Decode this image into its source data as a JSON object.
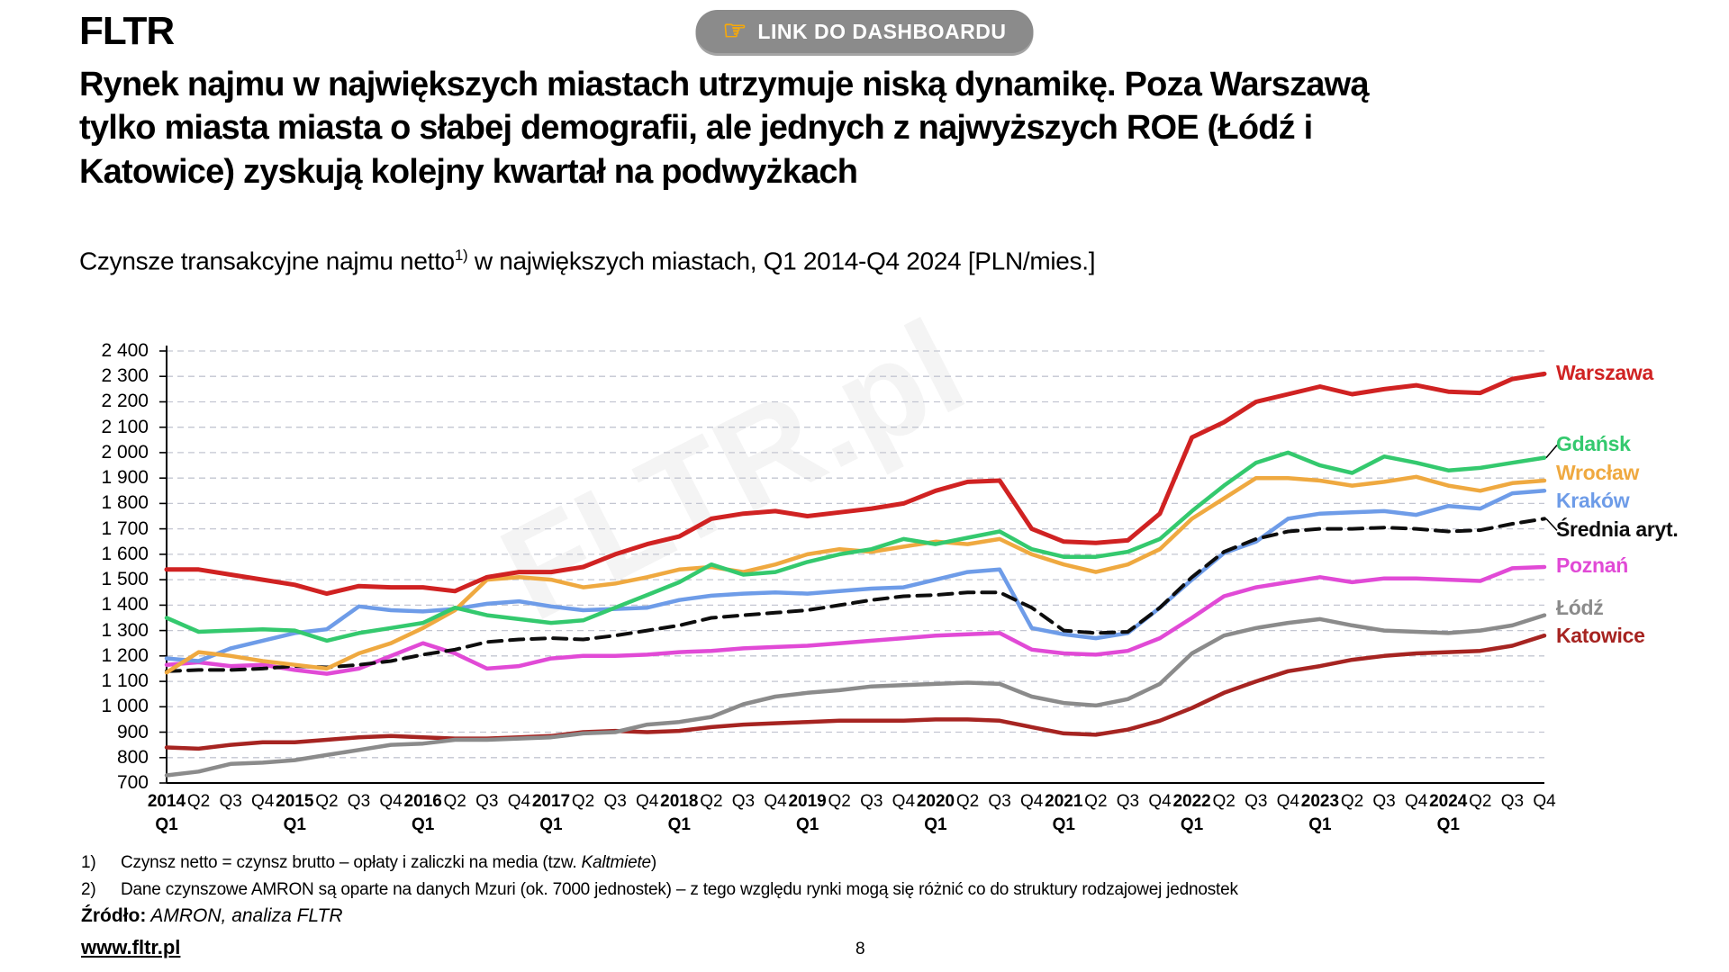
{
  "header": {
    "logo": "FLTR",
    "button_icon": "☞",
    "button_label": "LINK DO DASHBOARDU"
  },
  "title": "Rynek najmu w największych miastach utrzymuje niską dynamikę. Poza Warszawą tylko miasta miasta o słabej demografii, ale jednych z najwyższych ROE (Łódź i Katowice) zyskują kolejny kwartał na podwyżkach",
  "subtitle": {
    "prefix": "Czynsze transakcyjne najmu netto",
    "sup": "1)",
    "suffix": " w największych miastach, Q1 2014-Q4 2024 [PLN/mies.]"
  },
  "watermark": "FLTR.pl",
  "chart_data": {
    "type": "line",
    "title": "Czynsze transakcyjne najmu netto w największych miastach, Q1 2014-Q4 2024 [PLN/mies.]",
    "xlabel": "",
    "ylabel": "PLN/mies.",
    "ylim": [
      700,
      2400
    ],
    "ytick_step": 100,
    "grid": true,
    "legend_position": "right",
    "x_labels": [
      "2014 Q1",
      "Q2",
      "Q3",
      "Q4",
      "2015 Q1",
      "Q2",
      "Q3",
      "Q4",
      "2016 Q1",
      "Q2",
      "Q3",
      "Q4",
      "2017 Q1",
      "Q2",
      "Q3",
      "Q4",
      "2018 Q1",
      "Q2",
      "Q3",
      "Q4",
      "2019 Q1",
      "Q2",
      "Q3",
      "Q4",
      "2020 Q1",
      "Q2",
      "Q3",
      "Q4",
      "2021 Q1",
      "Q2",
      "Q3",
      "Q4",
      "2022 Q1",
      "Q2",
      "Q3",
      "Q4",
      "2023 Q1",
      "Q2",
      "Q3",
      "Q4",
      "2024 Q1",
      "Q2",
      "Q3",
      "Q4"
    ],
    "series": [
      {
        "name": "Warszawa",
        "color": "#d02222",
        "dash": false,
        "width": 5,
        "values": [
          1540,
          1540,
          1520,
          1500,
          1480,
          1445,
          1475,
          1470,
          1470,
          1455,
          1510,
          1530,
          1530,
          1550,
          1600,
          1640,
          1670,
          1740,
          1760,
          1770,
          1750,
          1765,
          1780,
          1800,
          1850,
          1885,
          1890,
          1700,
          1650,
          1645,
          1655,
          1760,
          2060,
          2120,
          2200,
          2230,
          2260,
          2230,
          2250,
          2265,
          2240,
          2235,
          2290,
          2310
        ]
      },
      {
        "name": "Gdańsk",
        "color": "#34c96e",
        "dash": false,
        "width": 4.5,
        "values": [
          1350,
          1295,
          1300,
          1305,
          1300,
          1260,
          1290,
          1310,
          1330,
          1390,
          1360,
          1345,
          1330,
          1340,
          1390,
          1440,
          1490,
          1560,
          1520,
          1530,
          1570,
          1600,
          1620,
          1660,
          1640,
          1665,
          1690,
          1620,
          1590,
          1590,
          1610,
          1660,
          1770,
          1870,
          1960,
          2000,
          1950,
          1920,
          1985,
          1960,
          1930,
          1940,
          1960,
          1980
        ]
      },
      {
        "name": "Wrocław",
        "color": "#efa940",
        "dash": false,
        "width": 4.5,
        "values": [
          1135,
          1215,
          1200,
          1180,
          1165,
          1150,
          1210,
          1250,
          1310,
          1380,
          1500,
          1510,
          1500,
          1470,
          1485,
          1510,
          1540,
          1550,
          1530,
          1560,
          1600,
          1620,
          1610,
          1630,
          1650,
          1640,
          1660,
          1600,
          1560,
          1530,
          1560,
          1620,
          1740,
          1820,
          1900,
          1900,
          1890,
          1870,
          1885,
          1905,
          1870,
          1850,
          1880,
          1890
        ]
      },
      {
        "name": "Kraków",
        "color": "#6e9ce8",
        "dash": false,
        "width": 4.5,
        "values": [
          1190,
          1180,
          1230,
          1260,
          1290,
          1305,
          1395,
          1380,
          1375,
          1385,
          1405,
          1415,
          1395,
          1380,
          1385,
          1390,
          1420,
          1437,
          1445,
          1450,
          1445,
          1455,
          1465,
          1470,
          1500,
          1530,
          1540,
          1310,
          1285,
          1270,
          1290,
          1390,
          1500,
          1605,
          1650,
          1740,
          1760,
          1765,
          1770,
          1755,
          1790,
          1780,
          1840,
          1850
        ]
      },
      {
        "name": "Średnia aryt.",
        "color": "#0d0d0d",
        "dash": true,
        "width": 4,
        "values": [
          1140,
          1145,
          1145,
          1150,
          1160,
          1155,
          1165,
          1180,
          1205,
          1225,
          1255,
          1265,
          1270,
          1265,
          1280,
          1300,
          1320,
          1350,
          1360,
          1370,
          1380,
          1400,
          1420,
          1435,
          1440,
          1450,
          1450,
          1390,
          1300,
          1290,
          1295,
          1390,
          1510,
          1610,
          1660,
          1690,
          1700,
          1700,
          1705,
          1700,
          1690,
          1695,
          1720,
          1740
        ]
      },
      {
        "name": "Poznań",
        "color": "#e14ad6",
        "dash": false,
        "width": 4.5,
        "values": [
          1165,
          1175,
          1160,
          1165,
          1145,
          1130,
          1150,
          1200,
          1250,
          1210,
          1150,
          1160,
          1190,
          1200,
          1200,
          1205,
          1215,
          1220,
          1230,
          1235,
          1240,
          1250,
          1260,
          1270,
          1280,
          1285,
          1290,
          1225,
          1210,
          1205,
          1220,
          1270,
          1350,
          1435,
          1470,
          1490,
          1510,
          1490,
          1505,
          1505,
          1500,
          1495,
          1545,
          1550
        ]
      },
      {
        "name": "Łódź",
        "color": "#8b8b8b",
        "dash": false,
        "width": 4.5,
        "values": [
          730,
          745,
          775,
          780,
          790,
          810,
          830,
          850,
          855,
          870,
          870,
          875,
          880,
          895,
          900,
          930,
          940,
          960,
          1010,
          1040,
          1055,
          1065,
          1080,
          1085,
          1090,
          1095,
          1090,
          1040,
          1015,
          1005,
          1030,
          1090,
          1210,
          1280,
          1310,
          1330,
          1345,
          1320,
          1300,
          1295,
          1290,
          1300,
          1320,
          1360
        ]
      },
      {
        "name": "Katowice",
        "color": "#a62421",
        "dash": false,
        "width": 4.5,
        "values": [
          840,
          835,
          850,
          860,
          860,
          870,
          880,
          885,
          880,
          875,
          875,
          880,
          885,
          900,
          905,
          900,
          905,
          920,
          930,
          935,
          940,
          945,
          945,
          945,
          950,
          950,
          945,
          920,
          895,
          890,
          910,
          945,
          995,
          1055,
          1100,
          1140,
          1160,
          1185,
          1200,
          1210,
          1215,
          1220,
          1240,
          1280
        ]
      }
    ]
  },
  "footnotes": [
    {
      "num": "1)",
      "pre": "Czynsz netto = czynsz brutto – opłaty i zaliczki na media (tzw. ",
      "italic": "Kaltmiete",
      "post": ")"
    },
    {
      "num": "2)",
      "pre": "Dane czynszowe AMRON są oparte na danych Mzuri (ok. 7000 jednostek) – z tego względu rynki mogą się różnić co do struktury rodzajowej jednostek",
      "italic": "",
      "post": ""
    }
  ],
  "source": {
    "label": "Źródło:",
    "text": " AMRON, analiza FLTR"
  },
  "footer": {
    "website": "www.fltr.pl",
    "page": "8"
  }
}
